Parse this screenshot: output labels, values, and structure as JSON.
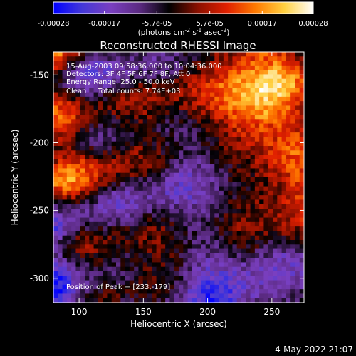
{
  "chart_data": {
    "type": "heatmap",
    "title": "Reconstructed RHESSI Image",
    "xlabel": "Heliocentric X (arcsec)",
    "ylabel": "Heliocentric Y (arcsec)",
    "xlim": [
      80,
      275
    ],
    "ylim": [
      -318,
      -133
    ],
    "x_ticks": [
      100,
      150,
      200,
      250
    ],
    "y_ticks": [
      -150,
      -200,
      -250,
      -300
    ],
    "colorbar": {
      "ticks": [
        "-0.00028",
        "-0.00017",
        "-5.7e-05",
        "5.7e-05",
        "0.00017",
        "0.00028"
      ],
      "tick_values": [
        -0.00028,
        -0.00017,
        -5.7e-05,
        5.7e-05,
        0.00017,
        0.00028
      ],
      "range": [
        -0.00028,
        0.00028
      ],
      "units_line": "(photons cm",
      "units_sup1": "-2",
      "units_mid": " s",
      "units_sup2": "-1",
      "units_end": " asec",
      "units_sup3": "-2",
      "units_close": ")",
      "colors": [
        "#0000ff",
        "#4438d8",
        "#7a3fc0",
        "#5a2a80",
        "#000000",
        "#8a1000",
        "#e02000",
        "#ff7a00",
        "#ffd040",
        "#ffffff"
      ]
    },
    "annotations": [
      "15-Aug-2003 09:58:36.000 to 10:04:36.000",
      "Detectors: 3F 4F 5F 6F 7F 8F, Att 0",
      "Energy Range: 25.0 - 50.0 keV",
      "Clean     Total counts: 7.74E+03"
    ],
    "peak_label": "Position of Peak = [233,-179]",
    "peak": [
      233,
      -179
    ],
    "grid": false
  },
  "footer": {
    "date": "4-May-2022 21:07"
  }
}
